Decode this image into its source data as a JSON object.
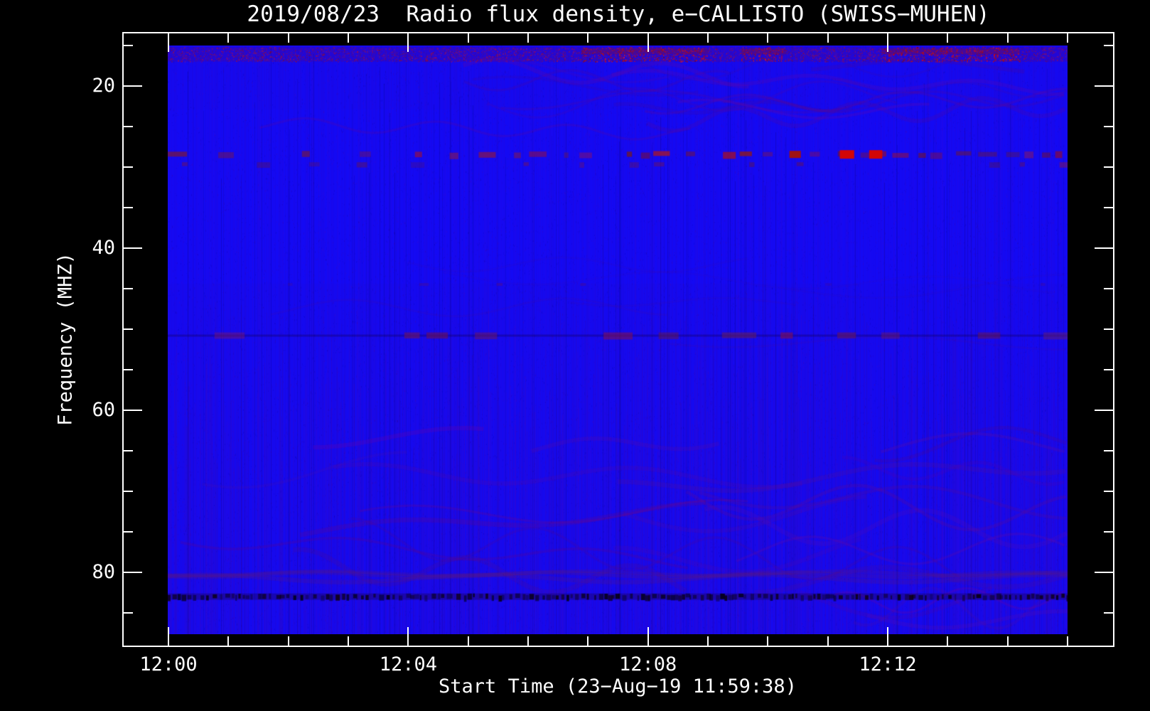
{
  "page": {
    "background": "#000000",
    "frame_color": "#ffffff",
    "text_color": "#ffffff"
  },
  "plot": {
    "title": "2019/08/23  Radio flux density, e−CALLISTO (SWISS−MUHEN)"
  },
  "axes": {
    "x": {
      "label": "Start Time (23−Aug−19 11:59:38)",
      "major_ticks": [
        {
          "label": "12:00",
          "minutes": 0
        },
        {
          "label": "12:04",
          "minutes": 4
        },
        {
          "label": "12:08",
          "minutes": 8
        },
        {
          "label": "12:12",
          "minutes": 12
        }
      ],
      "minor_tick_minutes": [
        1,
        2,
        3,
        5,
        6,
        7,
        9,
        10,
        11,
        13,
        14,
        15
      ]
    },
    "y": {
      "label": "Frequency (MHZ)",
      "major_ticks": [
        {
          "label": "20",
          "mhz": 20
        },
        {
          "label": "40",
          "mhz": 40
        },
        {
          "label": "60",
          "mhz": 60
        },
        {
          "label": "80",
          "mhz": 80
        }
      ],
      "minor_tick_mhz": [
        15,
        25,
        30,
        35,
        45,
        50,
        55,
        65,
        70,
        75,
        85
      ]
    }
  },
  "chart_data": {
    "type": "heatmap",
    "subtype": "radio-spectrogram",
    "title": "2019/08/23  Radio flux density, e−CALLISTO (SWISS−MUHEN)",
    "xlabel": "Start Time (23−Aug−19 11:59:38)",
    "ylabel": "Frequency (MHZ)",
    "x_tick_labels": [
      "12:00",
      "12:04",
      "12:08",
      "12:12"
    ],
    "y_tick_labels": [
      20,
      40,
      60,
      80
    ],
    "x_range_minutes_after_1200": [
      0,
      15
    ],
    "y_range_mhz": [
      15,
      87.6
    ],
    "y_axis_inverted": true,
    "legend": "none",
    "grid": "off",
    "colors": {
      "base_blue": "#1509ef",
      "striation_purple": "#5a0a8c",
      "speckle_red": "#aa1428",
      "burst_red": "#d20606",
      "moderate_red": "#a01212",
      "dash_28mhz": "#8c1a2e",
      "dash_30mhz": "#5a1a46",
      "dash_51mhz": "#69195f",
      "dark_83mhz": "#06030f",
      "wave_purple": "#701e6e"
    },
    "features": [
      {
        "id": "top-speckle-band",
        "mhz_range": [
          15.2,
          17.0
        ],
        "style": "red-speckle",
        "hotspot_minutes": [
          [
            6.9,
            9.0
          ],
          [
            9.55,
            10.3
          ],
          [
            11.9,
            14.2
          ]
        ]
      },
      {
        "id": "rfi-line-28mhz",
        "mhz_range": [
          28.0,
          28.9
        ],
        "style": "dashed-red",
        "strong_minutes": [
          [
            7.3,
            8.5
          ],
          [
            9.0,
            9.6
          ]
        ],
        "bright_bursts_minutes": [
          [
            11.2,
            11.44
          ],
          [
            11.69,
            11.91
          ]
        ],
        "moderate_bursts_minutes": [
          [
            10.36,
            10.55
          ]
        ]
      },
      {
        "id": "rfi-line-30mhz",
        "mhz_range": [
          29.4,
          30.0
        ],
        "style": "sparse-dashes"
      },
      {
        "id": "rfi-line-44mhz",
        "mhz_range": [
          44.3,
          44.8
        ],
        "style": "very-sparse-dashes"
      },
      {
        "id": "rfi-line-51mhz",
        "mhz_range": [
          50.4,
          51.2
        ],
        "style": "dashed-purple",
        "dense_minutes": [
          [
            7.0,
            12.0
          ]
        ]
      },
      {
        "id": "wavy-band-80mhz",
        "mhz_range": [
          79.3,
          81.6
        ],
        "style": "wavy-purple"
      },
      {
        "id": "dark-band-83mhz",
        "mhz_range": [
          82.6,
          83.4
        ],
        "style": "dark-barcode"
      },
      {
        "id": "wave-interference",
        "regions_mhz": [
          [
            15,
            25
          ],
          [
            63,
            87
          ]
        ],
        "style": "diagonal-wave-moire"
      }
    ]
  }
}
